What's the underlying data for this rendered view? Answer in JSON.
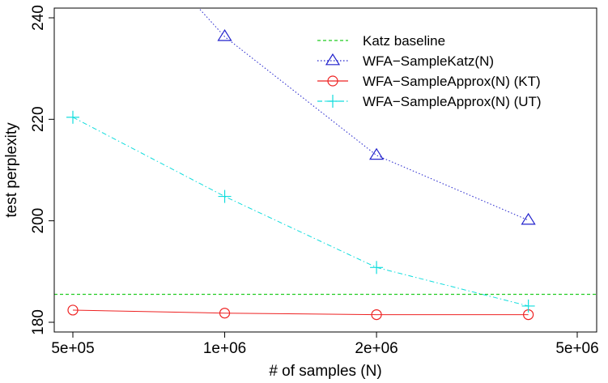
{
  "chart_data": {
    "type": "line",
    "xlabel": "# of samples (N)",
    "ylabel": "test perplexity",
    "x_scale": "log",
    "xlim": [
      500000,
      5000000
    ],
    "ylim": [
      180,
      240
    ],
    "x_ticks": [
      500000,
      1000000,
      2000000,
      5000000
    ],
    "x_tick_labels": [
      "5e+05",
      "1e+06",
      "2e+06",
      "5e+06"
    ],
    "y_ticks": [
      180,
      200,
      220,
      240
    ],
    "y_tick_labels": [
      "180",
      "200",
      "220",
      "240"
    ],
    "legend_position": "top-right",
    "grid": false,
    "baseline": {
      "name": "Katz baseline",
      "value": 185.5,
      "color": "#22cc22",
      "style": "dashed"
    },
    "series": [
      {
        "name": "WFA−SampleKatz(N)",
        "color": "#2222cc",
        "marker": "triangle",
        "line_style": "dotted",
        "x": [
          1000000,
          2000000,
          4000000
        ],
        "y": [
          236.3,
          212.9,
          200.1
        ],
        "extends_above_top_from_x": 850000,
        "extends_above_top_value": 244
      },
      {
        "name": "WFA−SampleApprox(N) (KT)",
        "color": "#ee2222",
        "marker": "circle",
        "line_style": "solid",
        "x": [
          500000,
          1000000,
          2000000,
          4000000
        ],
        "y": [
          182.4,
          181.8,
          181.5,
          181.5
        ]
      },
      {
        "name": "WFA−SampleApprox(N) (UT)",
        "color": "#11dddd",
        "marker": "plus",
        "line_style": "dashdot",
        "x": [
          500000,
          1000000,
          2000000,
          4000000
        ],
        "y": [
          220.4,
          204.8,
          190.8,
          183.2
        ]
      }
    ]
  }
}
